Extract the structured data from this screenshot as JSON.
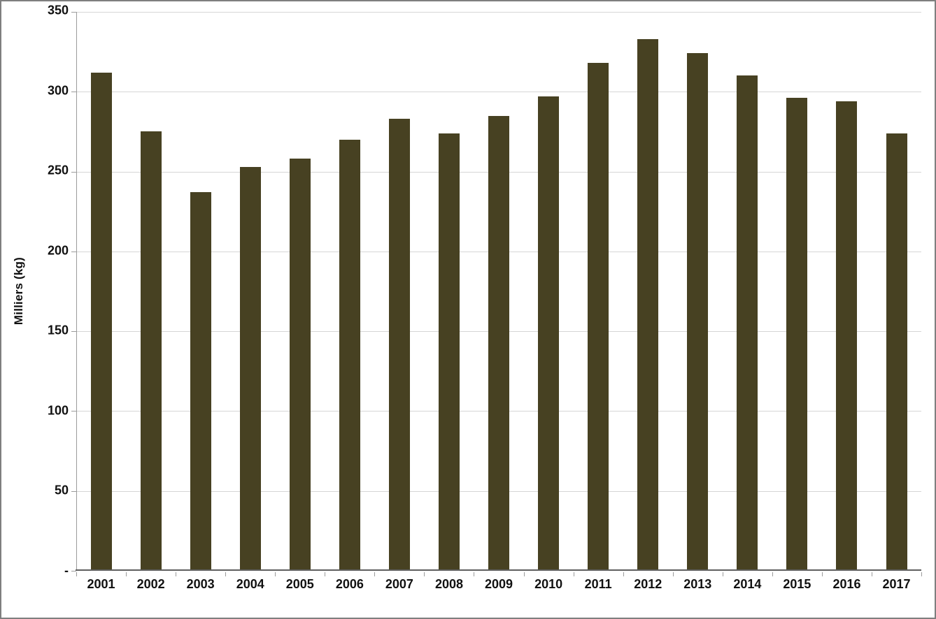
{
  "chart_data": {
    "type": "bar",
    "title": "",
    "xlabel": "",
    "ylabel": "Milliers (kg)",
    "categories": [
      "2001",
      "2002",
      "2003",
      "2004",
      "2005",
      "2006",
      "2007",
      "2008",
      "2009",
      "2010",
      "2011",
      "2012",
      "2013",
      "2014",
      "2015",
      "2016",
      "2017"
    ],
    "values": [
      312,
      275,
      237,
      253,
      258,
      270,
      283,
      274,
      285,
      297,
      318,
      333,
      324,
      310,
      296,
      294,
      274
    ],
    "ylim": [
      0,
      350
    ],
    "yticks": [
      {
        "label": "350",
        "value": 350
      },
      {
        "label": "300",
        "value": 300
      },
      {
        "label": "250",
        "value": 250
      },
      {
        "label": "200",
        "value": 200
      },
      {
        "label": "150",
        "value": 150
      },
      {
        "label": "100",
        "value": 100
      },
      {
        "label": "50",
        "value": 50
      },
      {
        "label": "-",
        "value": 0
      }
    ],
    "grid": true,
    "legend": "none",
    "bar_color": "#474122",
    "gridline_color": "#d6d6d6",
    "axis_color": "#9b9b9b",
    "frame_border_color": "#7f7f7f"
  }
}
